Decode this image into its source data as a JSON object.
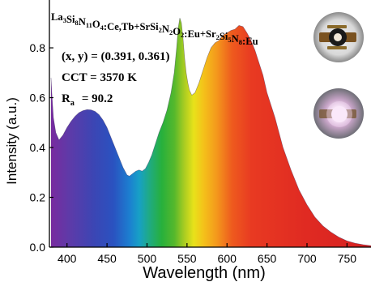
{
  "chart_data": {
    "type": "area",
    "title_parts": [
      {
        "t": "La",
        "s": false
      },
      {
        "t": "3",
        "s": true
      },
      {
        "t": "Si",
        "s": false
      },
      {
        "t": "8",
        "s": true
      },
      {
        "t": "N",
        "s": false
      },
      {
        "t": "11",
        "s": true
      },
      {
        "t": "O",
        "s": false
      },
      {
        "t": "4",
        "s": true
      },
      {
        "t": ":Ce,Tb+SrSi",
        "s": false
      },
      {
        "t": "2",
        "s": true
      },
      {
        "t": "N",
        "s": false
      },
      {
        "t": "2",
        "s": true
      },
      {
        "t": "O",
        "s": false
      },
      {
        "t": "2",
        "s": true
      },
      {
        "t": ":Eu+Sr",
        "s": false
      },
      {
        "t": "2",
        "s": true
      },
      {
        "t": "Si",
        "s": false
      },
      {
        "t": "5",
        "s": true
      },
      {
        "t": "N",
        "s": false
      },
      {
        "t": "8",
        "s": true
      },
      {
        "t": ":Eu",
        "s": false
      }
    ],
    "annotations": {
      "xy": "(x, y) = (0.391, 0.361)",
      "cct": "CCT = 3570 K",
      "ra_symbol": "R",
      "ra_sub": "a",
      "ra_value": "= 90.2"
    },
    "xlabel": "Wavelength (nm)",
    "ylabel": "Intensity (a.u.)",
    "xlim": [
      378,
      780
    ],
    "ylim": [
      0,
      0.94
    ],
    "xticks": [
      400,
      450,
      500,
      550,
      600,
      650,
      700,
      750
    ],
    "yticks": [
      0.0,
      0.2,
      0.4,
      0.6,
      0.8
    ],
    "ytick_labels": [
      "0.0",
      "0.2",
      "0.4",
      "0.6",
      "0.8"
    ],
    "grid": false,
    "series": [
      {
        "x": [
          380,
          381,
          383,
          386,
          390,
          395,
          400,
          405,
          410,
          415,
          420,
          425,
          430,
          435,
          440,
          445,
          450,
          455,
          460,
          465,
          470,
          475,
          478,
          482,
          486,
          490,
          494,
          498,
          502,
          506,
          510,
          515,
          520,
          525,
          530,
          534,
          537,
          539,
          541,
          543,
          545,
          547,
          549,
          551,
          553,
          556,
          560,
          565,
          570,
          575,
          580,
          585,
          590,
          595,
          600,
          605,
          610,
          615,
          620,
          625,
          630,
          635,
          640,
          645,
          650,
          660,
          670,
          680,
          690,
          700,
          710,
          720,
          730,
          740,
          750,
          760,
          770,
          780
        ],
        "y": [
          0.68,
          0.62,
          0.52,
          0.46,
          0.43,
          0.45,
          0.48,
          0.505,
          0.525,
          0.54,
          0.548,
          0.552,
          0.551,
          0.545,
          0.532,
          0.51,
          0.48,
          0.44,
          0.4,
          0.36,
          0.32,
          0.29,
          0.285,
          0.295,
          0.305,
          0.31,
          0.305,
          0.315,
          0.34,
          0.37,
          0.41,
          0.46,
          0.5,
          0.55,
          0.62,
          0.7,
          0.8,
          0.88,
          0.92,
          0.9,
          0.84,
          0.76,
          0.7,
          0.66,
          0.63,
          0.61,
          0.62,
          0.66,
          0.71,
          0.76,
          0.8,
          0.82,
          0.83,
          0.85,
          0.86,
          0.87,
          0.875,
          0.89,
          0.885,
          0.86,
          0.83,
          0.79,
          0.74,
          0.69,
          0.62,
          0.52,
          0.4,
          0.31,
          0.23,
          0.17,
          0.12,
          0.085,
          0.06,
          0.04,
          0.025,
          0.016,
          0.01,
          0.006
        ]
      }
    ],
    "inset_photos": [
      "led-off",
      "led-on"
    ]
  }
}
